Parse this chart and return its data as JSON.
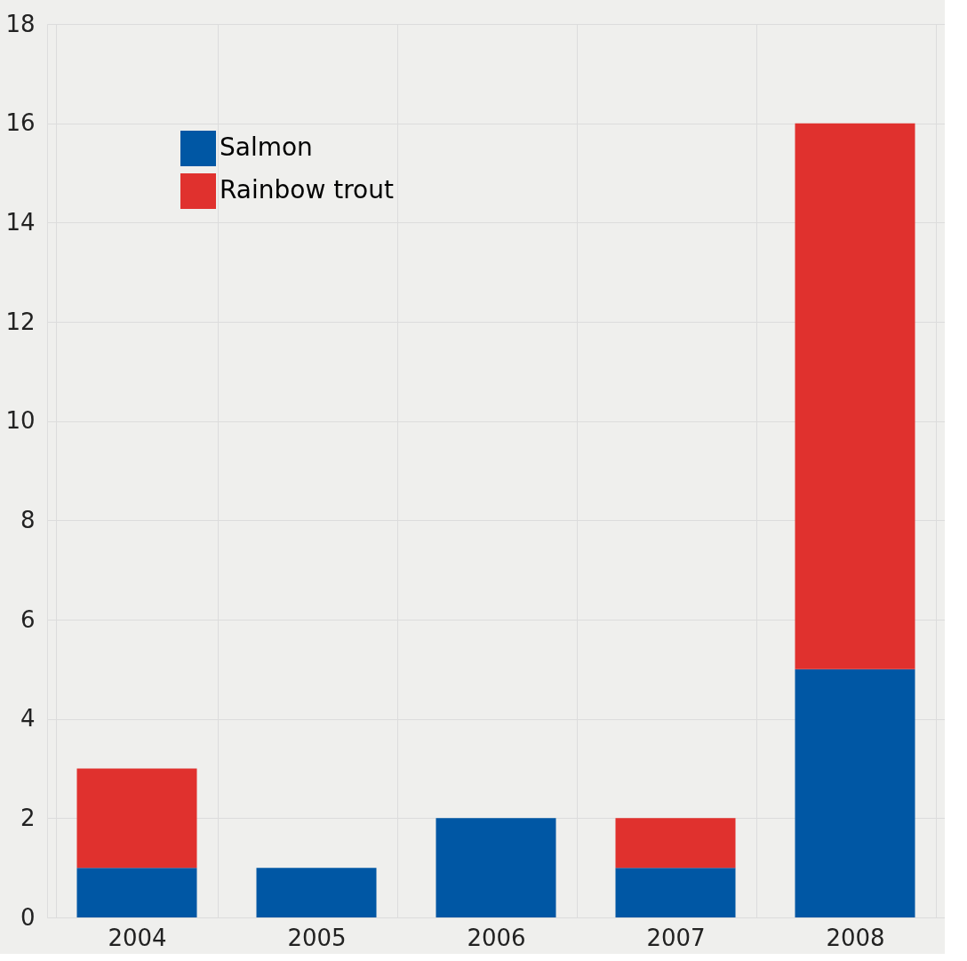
{
  "chart_data": {
    "type": "bar",
    "stacked": true,
    "categories": [
      "2004",
      "2005",
      "2006",
      "2007",
      "2008"
    ],
    "series": [
      {
        "name": "Salmon",
        "color": "#0057a4",
        "values": [
          1,
          1,
          2,
          1,
          5
        ]
      },
      {
        "name": "Rainbow trout",
        "color": "#e0312e",
        "values": [
          2,
          0,
          0,
          1,
          11
        ]
      }
    ],
    "ylim": [
      0,
      18
    ],
    "yticks": [
      0,
      2,
      4,
      6,
      8,
      10,
      12,
      14,
      16,
      18
    ],
    "grid": true,
    "legend": "top left"
  }
}
